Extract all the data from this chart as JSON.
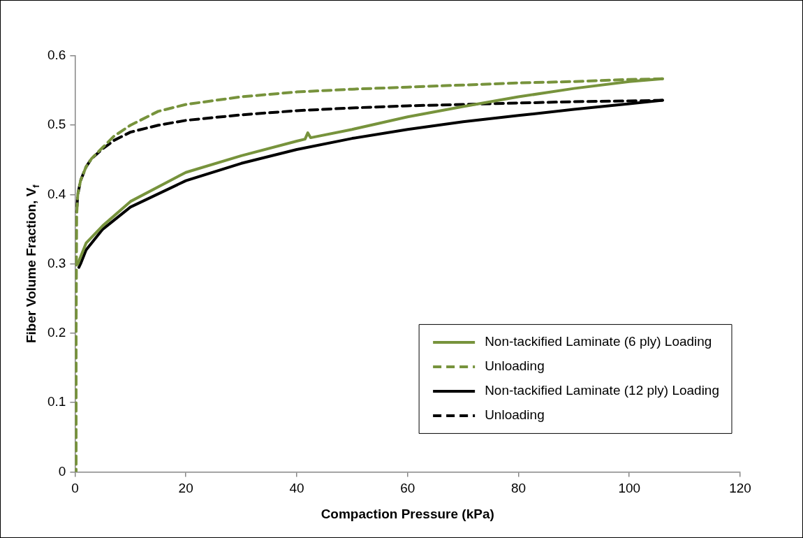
{
  "chart_data": {
    "type": "line",
    "xlabel": "Compaction Pressure (kPa)",
    "ylabel": "Fiber Volume Fraction, V$_{f}$",
    "xlim": [
      0,
      120
    ],
    "xticks": [
      0,
      20,
      40,
      60,
      80,
      100,
      120
    ],
    "ylim": [
      0,
      0.6
    ],
    "yticks": [
      0,
      0.1,
      0.2,
      0.3,
      0.4,
      0.5,
      0.6
    ],
    "grid": false,
    "legend": "bottom right",
    "marker": "none",
    "series": [
      {
        "name": "Non-tackified Laminate (6 ply) Loading",
        "color": "#77933c",
        "line_style": "solid",
        "x": [
          0.5,
          1,
          2,
          5,
          10,
          20,
          30,
          40,
          41.5,
          42,
          42.5,
          50,
          60,
          70,
          80,
          90,
          100,
          106
        ],
        "values": [
          0.3,
          0.31,
          0.33,
          0.355,
          0.39,
          0.432,
          0.456,
          0.477,
          0.48,
          0.489,
          0.482,
          0.494,
          0.512,
          0.527,
          0.541,
          0.553,
          0.563,
          0.567
        ]
      },
      {
        "name": "Unloading",
        "color": "#77933c",
        "line_style": "dashed",
        "x": [
          106,
          100,
          90,
          80,
          70,
          60,
          50,
          40,
          30,
          20,
          15,
          10,
          7,
          5,
          3,
          2,
          1,
          0.5,
          0.3,
          0.2,
          0.2
        ],
        "values": [
          0.567,
          0.566,
          0.563,
          0.561,
          0.558,
          0.555,
          0.552,
          0.548,
          0.541,
          0.53,
          0.52,
          0.5,
          0.484,
          0.468,
          0.452,
          0.44,
          0.42,
          0.4,
          0.37,
          0.2,
          0
        ]
      },
      {
        "name": "Non-tackified Laminate (12 ply) Loading",
        "color": "#000000",
        "line_style": "solid",
        "x": [
          0.7,
          1,
          2,
          5,
          10,
          20,
          30,
          40,
          50,
          60,
          70,
          80,
          90,
          100,
          106
        ],
        "values": [
          0.295,
          0.3,
          0.32,
          0.35,
          0.382,
          0.42,
          0.445,
          0.465,
          0.481,
          0.494,
          0.505,
          0.514,
          0.523,
          0.531,
          0.536
        ]
      },
      {
        "name": "Unloading",
        "color": "#000000",
        "line_style": "dashed",
        "x": [
          106,
          100,
          90,
          80,
          70,
          60,
          50,
          40,
          30,
          20,
          15,
          10,
          7,
          5,
          3,
          2,
          1,
          0.5,
          0.3
        ],
        "values": [
          0.536,
          0.535,
          0.534,
          0.532,
          0.53,
          0.528,
          0.525,
          0.521,
          0.515,
          0.507,
          0.5,
          0.49,
          0.478,
          0.466,
          0.452,
          0.44,
          0.42,
          0.4,
          0.375
        ]
      }
    ]
  }
}
